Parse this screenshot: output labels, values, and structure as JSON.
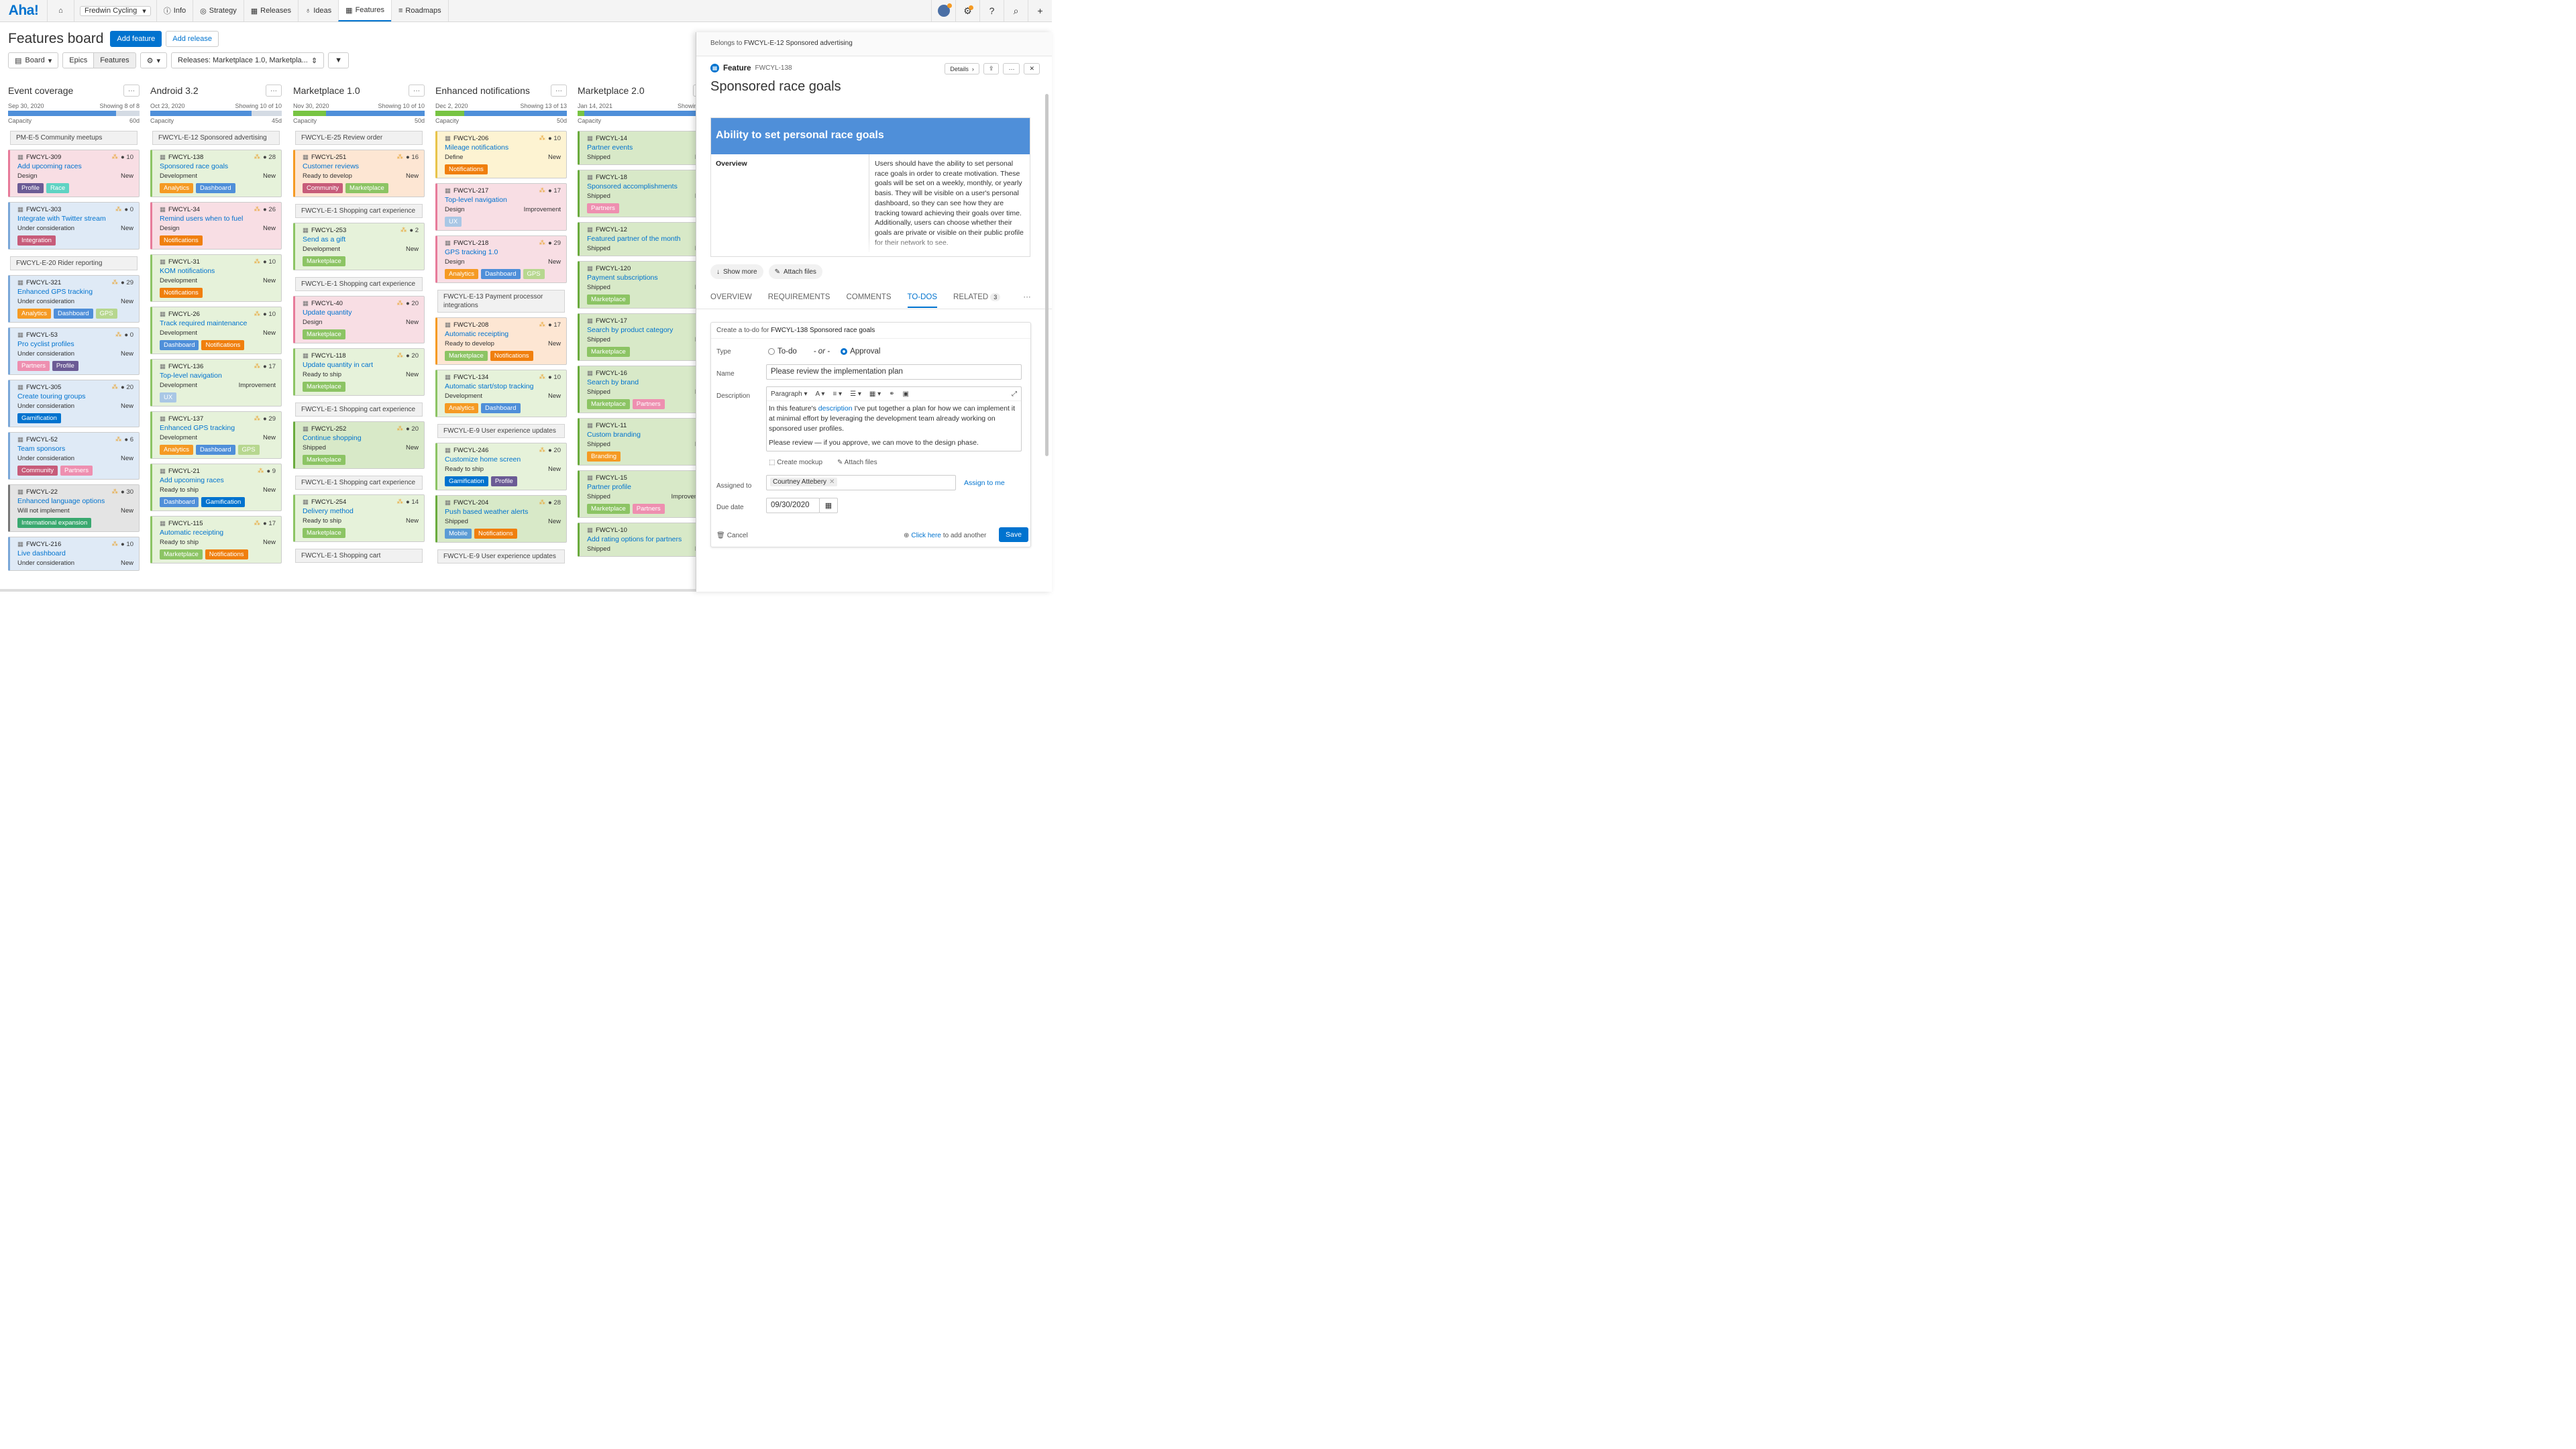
{
  "nav": {
    "logo": "Aha!",
    "workspace": "Fredwin Cycling",
    "items": [
      {
        "icon": "info-icon",
        "glyph": "ⓘ",
        "label": "Info"
      },
      {
        "icon": "strategy-icon",
        "glyph": "◎",
        "label": "Strategy"
      },
      {
        "icon": "calendar-icon",
        "glyph": "▦",
        "label": "Releases"
      },
      {
        "icon": "lightbulb-icon",
        "glyph": "♁",
        "label": "Ideas"
      },
      {
        "icon": "features-grid-icon",
        "glyph": "▦",
        "label": "Features"
      },
      {
        "icon": "roadmaps-icon",
        "glyph": "≡",
        "label": "Roadmaps"
      }
    ]
  },
  "header": {
    "title": "Features board",
    "add_feature": "Add feature",
    "add_release": "Add release"
  },
  "toolbar": {
    "board": "Board",
    "epics": "Epics",
    "features": "Features",
    "releases_filter": "Releases: Marketplace 1.0, Marketpla..."
  },
  "tag_colors": {
    "Profile": "#6b5b95",
    "Race": "#5fd3c3",
    "Integration": "#c75c7a",
    "Analytics": "#f59a23",
    "Dashboard": "#4f8fd9",
    "GPS": "#b7d78f",
    "Partners": "#ee8fb0",
    "Gamification": "#0073cf",
    "Community": "#c75c7a",
    "International expansion": "#39a86f",
    "Notifications": "#f07f0e",
    "UX": "#a9c7e5",
    "Marketplace": "#8cc464",
    "Mobile": "#5b9bd5",
    "Branding": "#f59a23"
  },
  "columns": [
    {
      "title": "Event coverage",
      "date": "Sep 30, 2020",
      "showing": "Showing 8 of 8",
      "capacity_label": "Capacity",
      "capacity": "60d",
      "bar": [
        0,
        82
      ],
      "items": [
        {
          "type": "epic",
          "label": "PM-E-5 Community meetups"
        },
        {
          "type": "card",
          "id": "FWCYL-309",
          "title": "Add upcoming races",
          "status": "Design",
          "right": "New",
          "score": "10",
          "bg": "#f8dee4",
          "stripe": "#e77b9a",
          "tags": [
            "Profile",
            "Race"
          ]
        },
        {
          "type": "card",
          "id": "FWCYL-303",
          "title": "Integrate with Twitter stream",
          "status": "Under consideration",
          "right": "New",
          "score": "0",
          "bg": "#dfeaf6",
          "stripe": "#7aa7d8",
          "tags": [
            "Integration"
          ]
        },
        {
          "type": "epic",
          "label": "FWCYL-E-20 Rider reporting"
        },
        {
          "type": "card",
          "id": "FWCYL-321",
          "title": "Enhanced GPS tracking",
          "status": "Under consideration",
          "right": "New",
          "score": "29",
          "bg": "#dfeaf6",
          "stripe": "#7aa7d8",
          "tags": [
            "Analytics",
            "Dashboard",
            "GPS"
          ]
        },
        {
          "type": "card",
          "id": "FWCYL-53",
          "title": "Pro cyclist profiles",
          "status": "Under consideration",
          "right": "New",
          "score": "0",
          "bg": "#dfeaf6",
          "stripe": "#7aa7d8",
          "tags": [
            "Partners",
            "Profile"
          ]
        },
        {
          "type": "card",
          "id": "FWCYL-305",
          "title": "Create touring groups",
          "status": "Under consideration",
          "right": "New",
          "score": "20",
          "bg": "#dfeaf6",
          "stripe": "#7aa7d8",
          "tags": [
            "Gamification"
          ]
        },
        {
          "type": "card",
          "id": "FWCYL-52",
          "title": "Team sponsors",
          "status": "Under consideration",
          "right": "New",
          "score": "6",
          "bg": "#dfeaf6",
          "stripe": "#7aa7d8",
          "tags": [
            "Community",
            "Partners"
          ]
        },
        {
          "type": "card",
          "id": "FWCYL-22",
          "title": "Enhanced language options",
          "status": "Will not implement",
          "right": "New",
          "score": "30",
          "bg": "#e4e4e4",
          "stripe": "#777777",
          "tags": [
            "International expansion"
          ]
        },
        {
          "type": "card",
          "id": "FWCYL-216",
          "title": "Live dashboard",
          "status": "Under consideration",
          "right": "New",
          "score": "10",
          "bg": "#dfeaf6",
          "stripe": "#7aa7d8",
          "tags": []
        }
      ]
    },
    {
      "title": "Android 3.2",
      "date": "Oct 23, 2020",
      "showing": "Showing 10 of 10",
      "capacity_label": "Capacity",
      "capacity": "45d",
      "bar": [
        0,
        77
      ],
      "items": [
        {
          "type": "epic",
          "label": "FWCYL-E-12 Sponsored advertising"
        },
        {
          "type": "card",
          "id": "FWCYL-138",
          "title": "Sponsored race goals",
          "status": "Development",
          "right": "New",
          "score": "28",
          "bg": "#e6f2da",
          "stripe": "#8cc464",
          "tags": [
            "Analytics",
            "Dashboard"
          ]
        },
        {
          "type": "card",
          "id": "FWCYL-34",
          "title": "Remind users when to fuel",
          "status": "Design",
          "right": "New",
          "score": "26",
          "bg": "#f8dee4",
          "stripe": "#e77b9a",
          "tags": [
            "Notifications"
          ]
        },
        {
          "type": "card",
          "id": "FWCYL-31",
          "title": "KOM notifications",
          "status": "Development",
          "right": "New",
          "score": "10",
          "bg": "#e6f2da",
          "stripe": "#8cc464",
          "tags": [
            "Notifications"
          ]
        },
        {
          "type": "card",
          "id": "FWCYL-26",
          "title": "Track required maintenance",
          "status": "Development",
          "right": "New",
          "score": "10",
          "bg": "#e6f2da",
          "stripe": "#8cc464",
          "tags": [
            "Dashboard",
            "Notifications"
          ]
        },
        {
          "type": "card",
          "id": "FWCYL-136",
          "title": "Top-level navigation",
          "status": "Development",
          "right": "Improvement",
          "score": "17",
          "bg": "#e6f2da",
          "stripe": "#8cc464",
          "tags": [
            "UX"
          ]
        },
        {
          "type": "card",
          "id": "FWCYL-137",
          "title": "Enhanced GPS tracking",
          "status": "Development",
          "right": "New",
          "score": "29",
          "bg": "#e6f2da",
          "stripe": "#8cc464",
          "tags": [
            "Analytics",
            "Dashboard",
            "GPS"
          ]
        },
        {
          "type": "card",
          "id": "FWCYL-21",
          "title": "Add upcoming races",
          "status": "Ready to ship",
          "right": "New",
          "score": "9",
          "bg": "#e6f2da",
          "stripe": "#8cc464",
          "tags": [
            "Dashboard",
            "Gamification"
          ]
        },
        {
          "type": "card",
          "id": "FWCYL-115",
          "title": "Automatic receipting",
          "status": "Ready to ship",
          "right": "New",
          "score": "17",
          "bg": "#e6f2da",
          "stripe": "#8cc464",
          "tags": [
            "Marketplace",
            "Notifications"
          ]
        }
      ]
    },
    {
      "title": "Marketplace 1.0",
      "date": "Nov 30, 2020",
      "showing": "Showing 10 of 10",
      "capacity_label": "Capacity",
      "capacity": "50d",
      "bar": [
        25,
        100
      ],
      "items": [
        {
          "type": "epic",
          "label": "FWCYL-E-25 Review order"
        },
        {
          "type": "card",
          "id": "FWCYL-251",
          "title": "Customer reviews",
          "status": "Ready to develop",
          "right": "New",
          "score": "16",
          "bg": "#fde6d3",
          "stripe": "#f59a23",
          "tags": [
            "Community",
            "Marketplace"
          ]
        },
        {
          "type": "epic",
          "label": "FWCYL-E-1 Shopping cart experience"
        },
        {
          "type": "card",
          "id": "FWCYL-253",
          "title": "Send as a gift",
          "status": "Development",
          "right": "New",
          "score": "2",
          "bg": "#e6f2da",
          "stripe": "#8cc464",
          "tags": [
            "Marketplace"
          ]
        },
        {
          "type": "epic",
          "label": "FWCYL-E-1 Shopping cart experience"
        },
        {
          "type": "card",
          "id": "FWCYL-40",
          "title": "Update quantity",
          "status": "Design",
          "right": "New",
          "score": "20",
          "bg": "#f8dee4",
          "stripe": "#e77b9a",
          "tags": [
            "Marketplace"
          ]
        },
        {
          "type": "card",
          "id": "FWCYL-118",
          "title": "Update quantity in cart",
          "status": "Ready to ship",
          "right": "New",
          "score": "20",
          "bg": "#e6f2da",
          "stripe": "#8cc464",
          "tags": [
            "Marketplace"
          ]
        },
        {
          "type": "epic",
          "label": "FWCYL-E-1 Shopping cart experience"
        },
        {
          "type": "card",
          "id": "FWCYL-252",
          "title": "Continue shopping",
          "status": "Shipped",
          "right": "New",
          "score": "20",
          "bg": "#d8e9c8",
          "stripe": "#6aab3d",
          "tags": [
            "Marketplace"
          ]
        },
        {
          "type": "epic",
          "label": "FWCYL-E-1 Shopping cart experience"
        },
        {
          "type": "card",
          "id": "FWCYL-254",
          "title": "Delivery method",
          "status": "Ready to ship",
          "right": "New",
          "score": "14",
          "bg": "#e6f2da",
          "stripe": "#8cc464",
          "tags": [
            "Marketplace"
          ]
        },
        {
          "type": "epic",
          "label": "FWCYL-E-1 Shopping cart"
        }
      ]
    },
    {
      "title": "Enhanced notifications",
      "date": "Dec 2, 2020",
      "showing": "Showing 13 of 13",
      "capacity_label": "Capacity",
      "capacity": "50d",
      "bar": [
        22,
        100
      ],
      "items": [
        {
          "type": "card",
          "id": "FWCYL-206",
          "title": "Mileage notifications",
          "status": "Define",
          "right": "New",
          "score": "10",
          "bg": "#fdf3d2",
          "stripe": "#e8c44a",
          "tags": [
            "Notifications"
          ]
        },
        {
          "type": "card",
          "id": "FWCYL-217",
          "title": "Top-level navigation",
          "status": "Design",
          "right": "Improvement",
          "score": "17",
          "bg": "#f8dee4",
          "stripe": "#e77b9a",
          "tags": [
            "UX"
          ]
        },
        {
          "type": "card",
          "id": "FWCYL-218",
          "title": "GPS tracking 1.0",
          "status": "Design",
          "right": "New",
          "score": "29",
          "bg": "#f8dee4",
          "stripe": "#e77b9a",
          "tags": [
            "Analytics",
            "Dashboard",
            "GPS"
          ]
        },
        {
          "type": "epic",
          "label": "FWCYL-E-13 Payment processor integrations"
        },
        {
          "type": "card",
          "id": "FWCYL-208",
          "title": "Automatic receipting",
          "status": "Ready to develop",
          "right": "New",
          "score": "17",
          "bg": "#fde6d3",
          "stripe": "#f59a23",
          "tags": [
            "Marketplace",
            "Notifications"
          ]
        },
        {
          "type": "card",
          "id": "FWCYL-134",
          "title": "Automatic start/stop tracking",
          "status": "Development",
          "right": "New",
          "score": "10",
          "bg": "#e6f2da",
          "stripe": "#8cc464",
          "tags": [
            "Analytics",
            "Dashboard"
          ]
        },
        {
          "type": "epic",
          "label": "FWCYL-E-9 User experience updates"
        },
        {
          "type": "card",
          "id": "FWCYL-246",
          "title": "Customize home screen",
          "status": "Ready to ship",
          "right": "New",
          "score": "20",
          "bg": "#e6f2da",
          "stripe": "#8cc464",
          "tags": [
            "Gamification",
            "Profile"
          ]
        },
        {
          "type": "card",
          "id": "FWCYL-204",
          "title": "Push based weather alerts",
          "status": "Shipped",
          "right": "New",
          "score": "28",
          "bg": "#d8e9c8",
          "stripe": "#6aab3d",
          "tags": [
            "Mobile",
            "Notifications"
          ]
        },
        {
          "type": "epic",
          "label": "FWCYL-E-9 User experience updates"
        }
      ]
    },
    {
      "title": "Marketplace 2.0",
      "date": "Jan 14, 2021",
      "showing": "Showing 10",
      "capacity_label": "Capacity",
      "capacity": "",
      "bar": [
        5,
        100
      ],
      "items": [
        {
          "type": "card",
          "id": "FWCYL-14",
          "title": "Partner events",
          "status": "Shipped",
          "right": "Ne",
          "score": "",
          "bg": "#d8e9c8",
          "stripe": "#6aab3d",
          "tags": []
        },
        {
          "type": "card",
          "id": "FWCYL-18",
          "title": "Sponsored accomplishments",
          "status": "Shipped",
          "right": "Ne",
          "score": "",
          "bg": "#d8e9c8",
          "stripe": "#6aab3d",
          "tags": [
            "Partners"
          ]
        },
        {
          "type": "card",
          "id": "FWCYL-12",
          "title": "Featured partner of the month",
          "status": "Shipped",
          "right": "Ne",
          "score": "",
          "bg": "#d8e9c8",
          "stripe": "#6aab3d",
          "tags": []
        },
        {
          "type": "card",
          "id": "FWCYL-120",
          "title": "Payment subscriptions",
          "status": "Shipped",
          "right": "Ne",
          "score": "",
          "bg": "#d8e9c8",
          "stripe": "#6aab3d",
          "tags": [
            "Marketplace"
          ]
        },
        {
          "type": "card",
          "id": "FWCYL-17",
          "title": "Search by product category",
          "status": "Shipped",
          "right": "Ne",
          "score": "",
          "bg": "#d8e9c8",
          "stripe": "#6aab3d",
          "tags": [
            "Marketplace"
          ]
        },
        {
          "type": "card",
          "id": "FWCYL-16",
          "title": "Search by brand",
          "status": "Shipped",
          "right": "Ne",
          "score": "",
          "bg": "#d8e9c8",
          "stripe": "#6aab3d",
          "tags": [
            "Marketplace",
            "Partners"
          ]
        },
        {
          "type": "card",
          "id": "FWCYL-11",
          "title": "Custom branding",
          "status": "Shipped",
          "right": "Ne",
          "score": "",
          "bg": "#d8e9c8",
          "stripe": "#6aab3d",
          "tags": [
            "Branding"
          ]
        },
        {
          "type": "card",
          "id": "FWCYL-15",
          "title": "Partner profile",
          "status": "Shipped",
          "right": "Improveme",
          "score": "",
          "bg": "#d8e9c8",
          "stripe": "#6aab3d",
          "tags": [
            "Marketplace",
            "Partners"
          ]
        },
        {
          "type": "card",
          "id": "FWCYL-10",
          "title": "Add rating options for partners",
          "status": "Shipped",
          "right": "Ne",
          "score": "",
          "bg": "#d8e9c8",
          "stripe": "#6aab3d",
          "tags": []
        }
      ]
    }
  ],
  "panel": {
    "belongs_prefix": "Belongs to",
    "belongs_to": "FWCYL-E-12 Sponsored advertising",
    "feature_label": "Feature",
    "feature_id": "FWCYL-138",
    "details": "Details",
    "title": "Sponsored race goals",
    "desc_heading": "Ability to set personal race goals",
    "overview_label": "Overview",
    "overview_text": "Users should have the ability to set personal race goals in order to create motivation. These goals will be set on a weekly, monthly, or yearly basis. They will be visible on a user's personal dashboard, so they can see how they are tracking toward achieving their goals over time. Additionally, users can choose whether their goals are private or visible on their public profile for their network to see.",
    "show_more": "Show more",
    "attach_files": "Attach files",
    "tabs": {
      "overview": "OVERVIEW",
      "requirements": "REQUIREMENTS",
      "comments": "COMMENTS",
      "todos": "TO-DOS",
      "related": "RELATED",
      "related_count": "3"
    },
    "todo": {
      "header_prefix": "Create a to-do for",
      "header_target": "FWCYL-138 Sponsored race goals",
      "type_label": "Type",
      "opt_todo": "To-do",
      "or": "- or -",
      "opt_approval": "Approval",
      "name_label": "Name",
      "name_value": "Please review the implementation plan",
      "description_label": "Description",
      "paragraph": "Paragraph",
      "body_prefix": "In this feature's",
      "body_link": "description",
      "body_rest": "I've put together a plan for how we can implement it at minimal effort by leveraging the development team already working on sponsored user profiles.",
      "body_p2": "Please review — if you approve, we can move to the design phase.",
      "create_mockup": "Create mockup",
      "attach_files": "Attach files",
      "assigned_label": "Assigned to",
      "assignee": "Courtney Attebery",
      "assign_to_me": "Assign to me",
      "due_label": "Due date",
      "due_value": "09/30/2020",
      "cancel": "Cancel",
      "click_here": "Click here",
      "add_another": "to add another",
      "save": "Save"
    }
  }
}
